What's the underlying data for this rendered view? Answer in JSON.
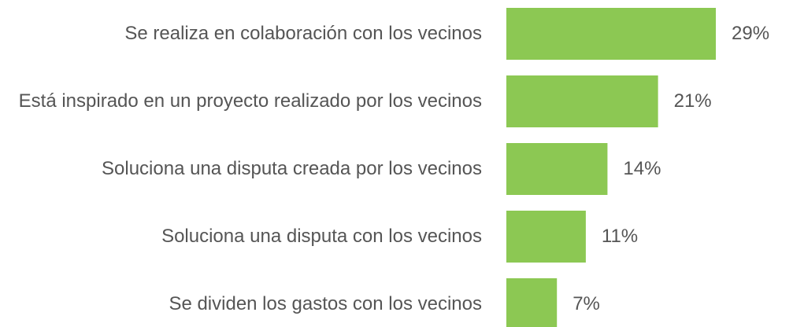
{
  "chart_data": {
    "type": "bar",
    "orientation": "horizontal",
    "categories": [
      "Se realiza en colaboración con los vecinos",
      "Está inspirado en un proyecto realizado por los vecinos",
      "Soluciona una disputa creada por los vecinos",
      "Soluciona una disputa con los vecinos",
      "Se dividen los gastos con los vecinos"
    ],
    "values": [
      29,
      21,
      14,
      11,
      7
    ],
    "value_labels": [
      "29%",
      "21%",
      "14%",
      "11%",
      "7%"
    ],
    "color": "#8cc853"
  }
}
